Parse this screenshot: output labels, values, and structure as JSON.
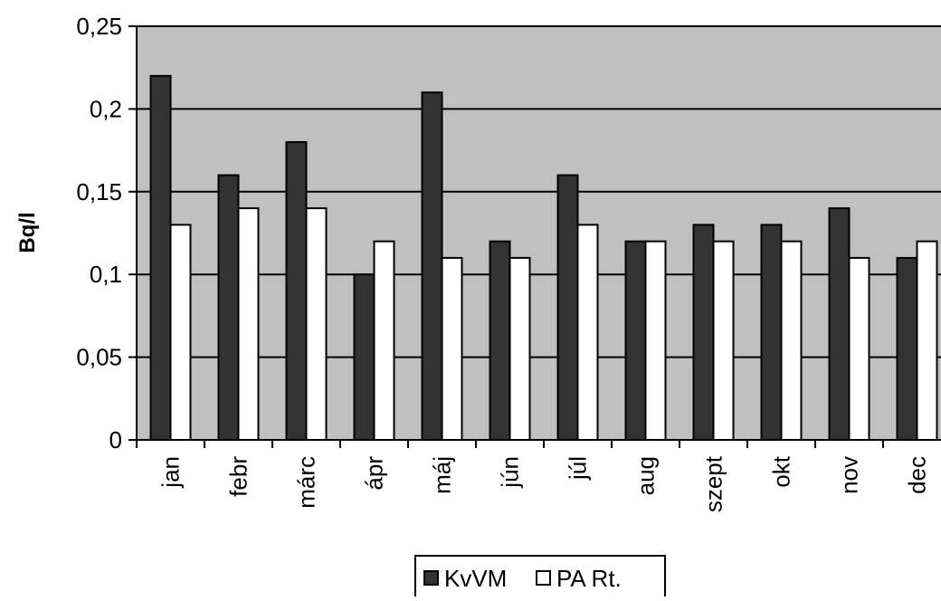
{
  "chart_data": {
    "type": "bar",
    "categories": [
      "jan",
      "febr",
      "márc",
      "ápr",
      "máj",
      "jún",
      "júl",
      "aug",
      "szept",
      "okt",
      "nov",
      "dec"
    ],
    "series": [
      {
        "name": "KvVM",
        "color": "#333333",
        "values": [
          0.22,
          0.16,
          0.18,
          0.1,
          0.21,
          0.12,
          0.16,
          0.12,
          0.13,
          0.13,
          0.14,
          0.11
        ]
      },
      {
        "name": "PA Rt.",
        "color": "#ffffff",
        "values": [
          0.13,
          0.14,
          0.14,
          0.12,
          0.11,
          0.11,
          0.13,
          0.12,
          0.12,
          0.12,
          0.11,
          0.12
        ]
      }
    ],
    "ylabel": "Bq/l",
    "ylim": [
      0,
      0.25
    ],
    "yticks": [
      "0",
      "0,05",
      "0,1",
      "0,15",
      "0,2",
      "0,25"
    ],
    "ytick_values": [
      0,
      0.05,
      0.1,
      0.15,
      0.2,
      0.25
    ],
    "grid": true,
    "plot_background": "#c0c0c0",
    "legend_position": "bottom"
  }
}
